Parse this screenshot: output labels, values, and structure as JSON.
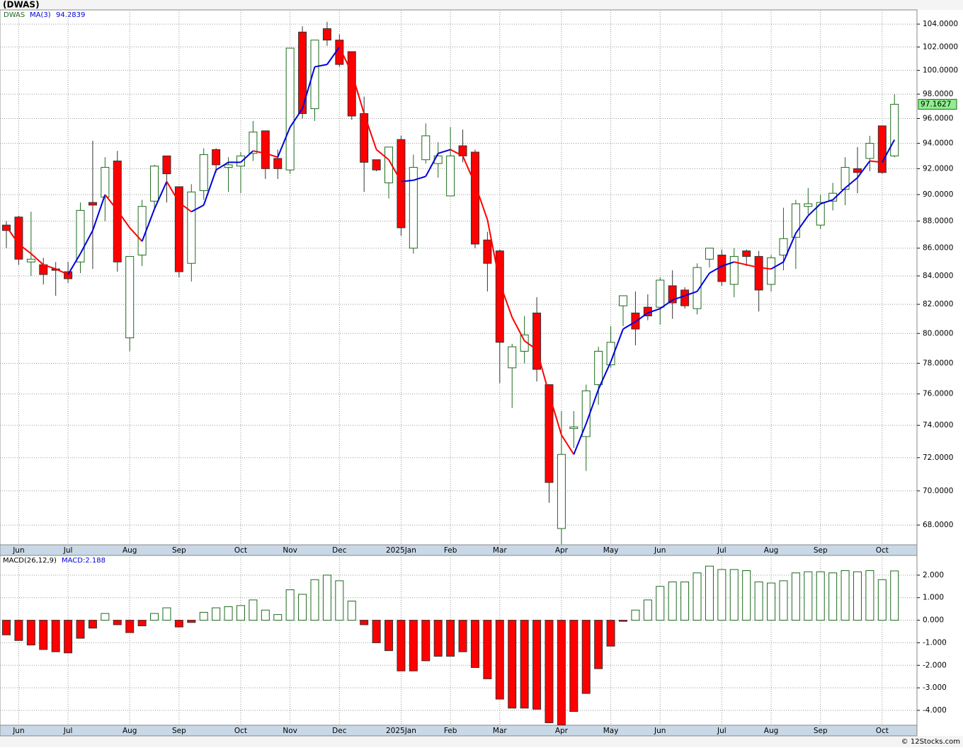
{
  "chart_data": [
    {
      "type": "candlestick",
      "title": "(DWAS)",
      "symbol": "DWAS",
      "categories": [
        null,
        "Jun",
        null,
        null,
        null,
        "Jul",
        null,
        null,
        null,
        null,
        "Aug",
        null,
        null,
        null,
        "Sep",
        null,
        null,
        null,
        null,
        "Oct",
        null,
        null,
        null,
        "Nov",
        null,
        null,
        null,
        "Dec",
        null,
        null,
        null,
        null,
        "2025Jan",
        null,
        null,
        null,
        "Feb",
        null,
        null,
        null,
        "Mar",
        null,
        null,
        null,
        null,
        "Apr",
        null,
        null,
        null,
        "May",
        null,
        null,
        null,
        "Jun",
        null,
        null,
        null,
        null,
        "Jul",
        null,
        null,
        null,
        "Aug",
        null,
        null,
        null,
        "Sep",
        null,
        null,
        null,
        null,
        "Oct",
        null
      ],
      "open": [
        87.7,
        88.3,
        85.0,
        84.8,
        84.5,
        84.3,
        85.0,
        89.4,
        89.8,
        92.6,
        79.7,
        85.5,
        89.5,
        93.0,
        90.6,
        84.9,
        90.3,
        93.5,
        92.1,
        92.2,
        93.2,
        95.0,
        92.8,
        91.9,
        103.3,
        96.8,
        103.6,
        102.6,
        101.6,
        96.4,
        92.7,
        90.9,
        94.3,
        86.0,
        92.7,
        92.4,
        89.9,
        93.8,
        93.3,
        86.6,
        85.8,
        77.7,
        78.8,
        81.4,
        76.6,
        67.8,
        73.8,
        73.3,
        76.6,
        77.9,
        81.9,
        81.4,
        81.8,
        81.8,
        83.3,
        83.0,
        81.7,
        85.2,
        85.5,
        83.4,
        85.8,
        85.4,
        83.4,
        85.5,
        86.8,
        89.1,
        87.7,
        89.5,
        90.4,
        92.0,
        92.8,
        95.4,
        93.0
      ],
      "high": [
        88.0,
        88.4,
        88.7,
        85.3,
        85.0,
        85.0,
        89.4,
        94.2,
        92.9,
        93.4,
        85.4,
        89.6,
        92.3,
        93.0,
        90.6,
        90.8,
        93.6,
        93.6,
        92.9,
        93.3,
        95.8,
        95.0,
        93.5,
        101.9,
        103.8,
        102.6,
        104.2,
        103.1,
        101.6,
        97.8,
        92.7,
        93.7,
        94.6,
        93.1,
        95.6,
        94.1,
        95.3,
        95.1,
        93.5,
        87.2,
        85.9,
        79.3,
        81.2,
        82.5,
        76.6,
        74.9,
        74.9,
        76.6,
        79.1,
        80.5,
        82.6,
        82.9,
        82.7,
        83.9,
        84.4,
        83.2,
        84.9,
        86.0,
        85.9,
        86.0,
        85.9,
        85.8,
        85.5,
        89.0,
        89.6,
        90.5,
        90.0,
        90.9,
        92.9,
        93.7,
        94.6,
        95.4,
        98.0
      ],
      "low": [
        86.0,
        84.8,
        84.0,
        83.4,
        82.6,
        83.5,
        84.2,
        84.5,
        88.0,
        84.3,
        78.8,
        84.7,
        88.8,
        89.4,
        83.9,
        83.6,
        89.6,
        91.7,
        90.2,
        90.1,
        92.6,
        91.2,
        91.2,
        91.6,
        96.0,
        95.8,
        102.1,
        100.3,
        95.9,
        90.2,
        91.8,
        89.7,
        86.9,
        85.6,
        92.4,
        91.3,
        89.9,
        92.5,
        86.0,
        82.9,
        76.7,
        75.1,
        78.0,
        76.8,
        69.3,
        66.9,
        72.6,
        71.2,
        75.3,
        77.7,
        80.5,
        79.2,
        80.9,
        80.6,
        81.0,
        81.7,
        81.3,
        84.6,
        83.3,
        82.5,
        84.7,
        81.5,
        82.9,
        84.4,
        84.5,
        88.5,
        87.4,
        88.8,
        89.2,
        90.1,
        91.8,
        91.6,
        92.9
      ],
      "close": [
        87.3,
        85.2,
        85.2,
        84.1,
        84.4,
        83.8,
        88.8,
        89.2,
        92.1,
        85.0,
        85.4,
        89.1,
        92.2,
        91.6,
        84.3,
        90.2,
        93.1,
        92.3,
        92.3,
        93.0,
        94.9,
        92.0,
        92.0,
        101.9,
        96.4,
        102.6,
        102.6,
        100.5,
        96.2,
        92.5,
        91.9,
        93.7,
        87.5,
        92.1,
        94.6,
        93.0,
        93.0,
        93.0,
        86.3,
        84.9,
        79.4,
        79.1,
        79.9,
        77.6,
        70.5,
        72.2,
        73.9,
        76.2,
        78.8,
        79.4,
        82.6,
        80.3,
        81.2,
        83.7,
        82.1,
        81.9,
        84.6,
        86.0,
        83.6,
        85.4,
        85.4,
        83.0,
        85.3,
        86.7,
        89.3,
        89.3,
        89.4,
        90.1,
        92.1,
        91.7,
        94.0,
        91.7,
        97.1627
      ],
      "up_color": "#1e6b1e",
      "down_color": "#ff0000",
      "series": [
        {
          "name": "MA(3)",
          "up_color": "#0000dd",
          "down_color": "#ff0000",
          "values": [
            87.6,
            86.3,
            85.6,
            84.8,
            84.5,
            84.1,
            85.6,
            87.3,
            90.0,
            88.8,
            87.5,
            86.5,
            88.9,
            91.0,
            89.4,
            88.7,
            89.2,
            91.9,
            92.5,
            92.5,
            93.4,
            93.2,
            92.9,
            95.3,
            96.8,
            100.3,
            100.5,
            102.0,
            99.8,
            96.4,
            93.5,
            92.7,
            91.0,
            91.1,
            91.4,
            93.2,
            93.5,
            93.0,
            90.8,
            88.1,
            83.5,
            81.1,
            79.5,
            78.9,
            76.0,
            73.4,
            72.2,
            74.1,
            76.3,
            78.1,
            80.3,
            80.8,
            81.4,
            81.7,
            82.3,
            82.6,
            82.9,
            84.2,
            84.7,
            85.0,
            84.8,
            84.6,
            84.5,
            85.0,
            87.1,
            88.4,
            89.3,
            89.6,
            90.5,
            91.3,
            92.6,
            92.5,
            94.2839
          ]
        }
      ],
      "log": true,
      "grid": true,
      "ylim": [
        66.87,
        105.26
      ],
      "yticks": [
        {
          "value": 68,
          "label": "68.0000"
        },
        {
          "value": 70,
          "label": "70.0000"
        },
        {
          "value": 72,
          "label": "72.0000"
        },
        {
          "value": 74,
          "label": "74.0000"
        },
        {
          "value": 76,
          "label": "76.0000"
        },
        {
          "value": 78,
          "label": "78.0000"
        },
        {
          "value": 80,
          "label": "80.0000"
        },
        {
          "value": 82,
          "label": "82.0000"
        },
        {
          "value": 84,
          "label": "84.0000"
        },
        {
          "value": 86,
          "label": "86.0000"
        },
        {
          "value": 88,
          "label": "88.0000"
        },
        {
          "value": 90,
          "label": "90.0000"
        },
        {
          "value": 92,
          "label": "92.0000"
        },
        {
          "value": 94,
          "label": "94.0000"
        },
        {
          "value": 96,
          "label": "96.0000"
        },
        {
          "value": 98,
          "label": "98.0000"
        },
        {
          "value": 100,
          "label": "100.0000"
        },
        {
          "value": 102,
          "label": "102.0000"
        },
        {
          "value": 104,
          "label": "104.0000"
        }
      ]
    },
    {
      "type": "bar",
      "title": "MACD(26,12,9)",
      "value_label_text": "MACD:2.188",
      "categories": [
        null,
        "Jun",
        null,
        null,
        null,
        "Jul",
        null,
        null,
        null,
        null,
        "Aug",
        null,
        null,
        null,
        "Sep",
        null,
        null,
        null,
        null,
        "Oct",
        null,
        null,
        null,
        "Nov",
        null,
        null,
        null,
        "Dec",
        null,
        null,
        null,
        null,
        "2025Jan",
        null,
        null,
        null,
        "Feb",
        null,
        null,
        null,
        "Mar",
        null,
        null,
        null,
        null,
        "Apr",
        null,
        null,
        null,
        "May",
        null,
        null,
        null,
        "Jun",
        null,
        null,
        null,
        null,
        "Jul",
        null,
        null,
        null,
        "Aug",
        null,
        null,
        null,
        "Sep",
        null,
        null,
        null,
        null,
        "Oct",
        null
      ],
      "values": [
        -0.65,
        -0.9,
        -1.1,
        -1.3,
        -1.4,
        -1.45,
        -0.8,
        -0.35,
        0.3,
        -0.2,
        -0.55,
        -0.25,
        0.3,
        0.55,
        -0.3,
        -0.1,
        0.35,
        0.55,
        0.6,
        0.65,
        0.9,
        0.45,
        0.25,
        1.35,
        1.15,
        1.8,
        2.0,
        1.75,
        0.85,
        -0.2,
        -1.0,
        -1.35,
        -2.25,
        -2.25,
        -1.8,
        -1.6,
        -1.6,
        -1.4,
        -2.1,
        -2.6,
        -3.5,
        -3.9,
        -3.9,
        -3.95,
        -4.55,
        -4.65,
        -4.05,
        -3.25,
        -2.15,
        -1.15,
        -0.05,
        0.45,
        0.9,
        1.5,
        1.7,
        1.7,
        2.1,
        2.4,
        2.25,
        2.25,
        2.2,
        1.7,
        1.65,
        1.75,
        2.1,
        2.15,
        2.15,
        2.1,
        2.2,
        2.15,
        2.2,
        1.8,
        2.188
      ],
      "positive_color": "#1e6b1e",
      "negative_color": "#ff0000",
      "grid": true,
      "ylim": [
        -4.66,
        2.875
      ],
      "yticks": [
        {
          "value": -4,
          "label": "-4.000"
        },
        {
          "value": -3,
          "label": "-3.000"
        },
        {
          "value": -2,
          "label": "-2.000"
        },
        {
          "value": -1,
          "label": "-1.000"
        },
        {
          "value": 0,
          "label": "0.000"
        },
        {
          "value": 1,
          "label": "1.000"
        },
        {
          "value": 2,
          "label": "2.000"
        }
      ]
    }
  ],
  "footer": "© 12Stocks.com"
}
